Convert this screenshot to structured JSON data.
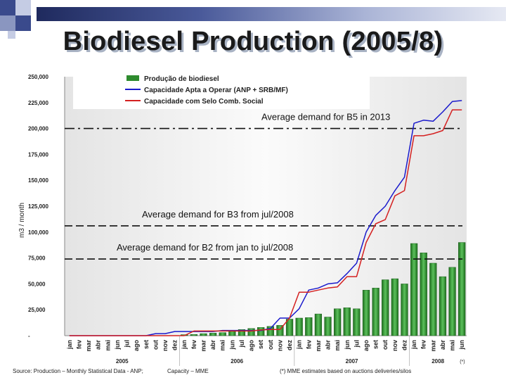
{
  "slide": {
    "title": "Biodiesel Production (2005/8)",
    "accent_color": "#28306e",
    "square_colors": [
      "#3a4a8c",
      "#8a96c0",
      "#c5cce4"
    ]
  },
  "footer": {
    "source": "Source: Production – Monthly Statistical Data - ANP;",
    "capacity": "Capacity – MME",
    "note": "(*) MME estimates based on auctions deliveries/silos"
  },
  "chart_data": {
    "type": "bar",
    "ylabel": "m3 / month",
    "ylim": [
      0,
      250000
    ],
    "yticks": [
      0,
      25000,
      50000,
      75000,
      100000,
      125000,
      150000,
      175000,
      200000,
      225000,
      250000
    ],
    "ytick_labels": [
      "-",
      "25,000",
      "50,000",
      "75,000",
      "100,000",
      "125,000",
      "150,000",
      "175,000",
      "200,000",
      "225,000",
      "250,000"
    ],
    "categories": [
      "jan",
      "fev",
      "mar",
      "abr",
      "mai",
      "jun",
      "jul",
      "ago",
      "set",
      "out",
      "nov",
      "dez",
      "jan",
      "fev",
      "mar",
      "abr",
      "mai",
      "jun",
      "jul",
      "ago",
      "set",
      "out",
      "nov",
      "dez",
      "jan",
      "fev",
      "mar",
      "abr",
      "mai",
      "jun",
      "jul",
      "ago",
      "set",
      "out",
      "nov",
      "dez",
      "jan",
      "fev",
      "mar",
      "abr",
      "mai",
      "jun"
    ],
    "year_labels": [
      {
        "label": "2005",
        "start": 0,
        "end": 11
      },
      {
        "label": "2006",
        "start": 12,
        "end": 23
      },
      {
        "label": "2007",
        "start": 24,
        "end": 35
      },
      {
        "label": "2008",
        "start": 36,
        "end": 41
      }
    ],
    "estimate_marker": "(*)",
    "series": [
      {
        "name": "Produção de biodiesel",
        "kind": "bar",
        "color": "#2e8b2e",
        "values": [
          0,
          0,
          0,
          0,
          0,
          0,
          0,
          0,
          0,
          0,
          0,
          0,
          1000,
          1200,
          2000,
          2500,
          3000,
          5000,
          6000,
          7000,
          8000,
          9000,
          10000,
          16000,
          17000,
          17500,
          21000,
          18000,
          26000,
          27000,
          26000,
          44000,
          46000,
          54000,
          55000,
          50000,
          89000,
          80000,
          70000,
          57000,
          66000,
          90000
        ]
      },
      {
        "name": "Capacidade Apta a Operar (ANP + SRB/MF)",
        "kind": "line",
        "color": "#1a1acc",
        "values": [
          0,
          0,
          0,
          0,
          0,
          0,
          0,
          0,
          0,
          2000,
          2000,
          4000,
          4000,
          4000,
          4000,
          4000,
          5000,
          5000,
          5000,
          5000,
          5000,
          7000,
          17000,
          17000,
          26000,
          44000,
          46000,
          50000,
          51000,
          60000,
          70000,
          100000,
          116000,
          125000,
          140000,
          153000,
          205000,
          208000,
          207000,
          216000,
          226000,
          227000
        ]
      },
      {
        "name": "Capacidade com Selo Comb. Social",
        "kind": "line",
        "color": "#d42020",
        "values": [
          0,
          0,
          0,
          0,
          0,
          0,
          0,
          0,
          0,
          0,
          0,
          0,
          0,
          4500,
          4500,
          4500,
          4500,
          4500,
          4500,
          4500,
          5500,
          6000,
          6000,
          17000,
          42000,
          42000,
          44000,
          46000,
          47000,
          57000,
          57000,
          90000,
          108000,
          112000,
          135000,
          140000,
          193000,
          193000,
          195000,
          198000,
          218000,
          218000
        ]
      }
    ],
    "reference_lines": [
      {
        "label": "Average demand for B5 in 2013",
        "value": 200000,
        "style": "dashdot"
      },
      {
        "label": "Average demand for B3 from jul/2008",
        "value": 106000,
        "style": "dash"
      },
      {
        "label": "Average demand for  B2 from jan to jul/2008",
        "value": 74000,
        "style": "dash"
      }
    ]
  }
}
